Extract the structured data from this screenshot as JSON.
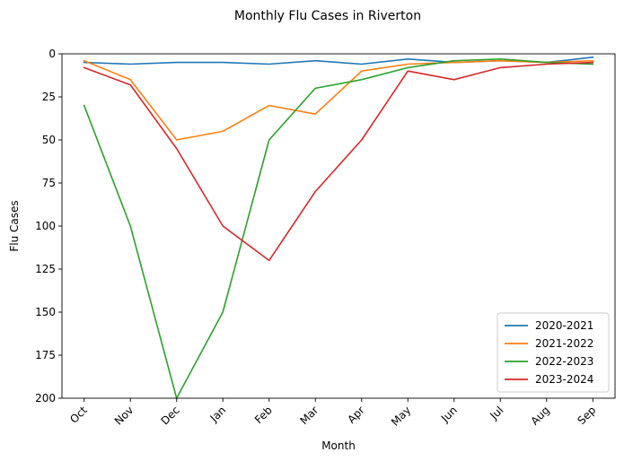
{
  "chart_data": {
    "type": "line",
    "title": "Monthly Flu Cases in Riverton",
    "xlabel": "Month",
    "ylabel": "Flu Cases",
    "categories": [
      "Oct",
      "Nov",
      "Dec",
      "Jan",
      "Feb",
      "Mar",
      "Apr",
      "May",
      "Jun",
      "Jul",
      "Aug",
      "Sep"
    ],
    "y_inverted": true,
    "ylim": [
      0,
      200
    ],
    "yticks": [
      0,
      25,
      50,
      75,
      100,
      125,
      150,
      175,
      200
    ],
    "grid": false,
    "legend_position": "lower-right",
    "series": [
      {
        "name": "2020-2021",
        "color": "#1f77b4",
        "values": [
          5,
          6,
          5,
          5,
          6,
          4,
          6,
          3,
          5,
          4,
          5,
          2
        ]
      },
      {
        "name": "2021-2022",
        "color": "#ff7f0e",
        "values": [
          4,
          15,
          50,
          45,
          30,
          35,
          10,
          6,
          5,
          4,
          5,
          4
        ]
      },
      {
        "name": "2022-2023",
        "color": "#2ca02c",
        "values": [
          30,
          100,
          200,
          150,
          50,
          20,
          15,
          8,
          4,
          3,
          5,
          6
        ]
      },
      {
        "name": "2023-2024",
        "color": "#d62728",
        "values": [
          8,
          18,
          55,
          100,
          120,
          80,
          50,
          10,
          15,
          8,
          6,
          5
        ]
      }
    ]
  }
}
